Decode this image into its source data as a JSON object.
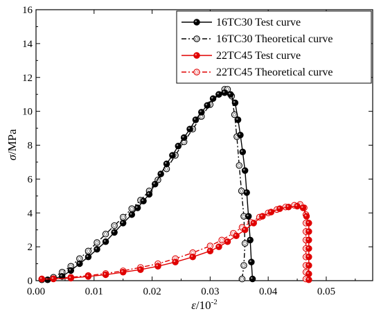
{
  "chart_data": {
    "type": "line",
    "ylabel_symbol": "σ",
    "ylabel_unit": "/MPa",
    "xlabel_symbol": "ε",
    "xlabel_unit": "/10",
    "xlabel_exp": "-2",
    "xlim": [
      0,
      0.058
    ],
    "ylim": [
      0,
      16
    ],
    "xticks": [
      0,
      0.01,
      0.02,
      0.03,
      0.04,
      0.05
    ],
    "xtick_labels": [
      "0.00",
      "0.01",
      "0.02",
      "0.03",
      "0.04",
      "0.05"
    ],
    "yticks": [
      0,
      2,
      4,
      6,
      8,
      10,
      12,
      14,
      16
    ],
    "ytick_labels": [
      "0",
      "2",
      "4",
      "6",
      "8",
      "10",
      "12",
      "14",
      "16"
    ],
    "grid": false,
    "legend_position": "top-right",
    "series": [
      {
        "name": "16TC30 Test curve",
        "color": "#000000",
        "line": "solid",
        "marker": "filled-circle",
        "x": [
          0.002,
          0.0045,
          0.006,
          0.0075,
          0.009,
          0.0105,
          0.012,
          0.0135,
          0.015,
          0.0165,
          0.0175,
          0.0185,
          0.0195,
          0.0205,
          0.0215,
          0.0225,
          0.0235,
          0.0245,
          0.0255,
          0.0265,
          0.0275,
          0.0285,
          0.0295,
          0.0305,
          0.0315,
          0.0325,
          0.0335,
          0.0343,
          0.0348,
          0.0352,
          0.0356,
          0.036,
          0.0363,
          0.0366,
          0.0369,
          0.0371,
          0.0373
        ],
        "y": [
          0.05,
          0.25,
          0.6,
          1.0,
          1.4,
          1.85,
          2.3,
          2.85,
          3.4,
          3.9,
          4.3,
          4.7,
          5.1,
          5.7,
          6.3,
          6.9,
          7.4,
          7.95,
          8.45,
          8.95,
          9.5,
          9.95,
          10.35,
          10.75,
          11.0,
          11.1,
          11.0,
          10.5,
          9.5,
          8.6,
          7.6,
          6.5,
          5.2,
          3.8,
          2.4,
          1.1,
          0.1
        ]
      },
      {
        "name": "16TC30 Theoretical curve",
        "color": "#000000",
        "line": "dash-dot",
        "marker": "hollow-circle",
        "x": [
          0.001,
          0.003,
          0.0045,
          0.006,
          0.0075,
          0.009,
          0.0105,
          0.012,
          0.0135,
          0.015,
          0.0165,
          0.018,
          0.0195,
          0.021,
          0.0225,
          0.024,
          0.0255,
          0.027,
          0.0285,
          0.03,
          0.0315,
          0.0325,
          0.033,
          0.0337,
          0.0342,
          0.0346,
          0.035,
          0.0354,
          0.0358,
          0.036,
          0.0358,
          0.0355
        ],
        "y": [
          0.05,
          0.2,
          0.5,
          0.85,
          1.3,
          1.75,
          2.25,
          2.75,
          3.25,
          3.75,
          4.25,
          4.75,
          5.3,
          5.95,
          6.6,
          7.4,
          8.2,
          8.95,
          9.7,
          10.4,
          11.0,
          11.3,
          11.3,
          10.9,
          9.8,
          8.5,
          6.8,
          5.3,
          3.8,
          2.2,
          0.9,
          0.1
        ]
      },
      {
        "name": "22TC45 Test curve",
        "color": "#e00000",
        "line": "solid",
        "marker": "filled-circle",
        "x": [
          0.001,
          0.003,
          0.006,
          0.009,
          0.012,
          0.015,
          0.018,
          0.021,
          0.024,
          0.027,
          0.03,
          0.0315,
          0.033,
          0.0345,
          0.036,
          0.0375,
          0.039,
          0.0405,
          0.042,
          0.0435,
          0.045,
          0.046,
          0.0466,
          0.047,
          0.047,
          0.047,
          0.047,
          0.047,
          0.047,
          0.047,
          0.047
        ],
        "y": [
          0.1,
          0.1,
          0.15,
          0.25,
          0.35,
          0.5,
          0.65,
          0.85,
          1.1,
          1.4,
          1.75,
          2.0,
          2.3,
          2.65,
          3.0,
          3.4,
          3.8,
          4.05,
          4.25,
          4.35,
          4.4,
          4.3,
          3.8,
          3.4,
          2.9,
          2.4,
          1.9,
          1.4,
          0.9,
          0.4,
          0.05
        ]
      },
      {
        "name": "22TC45 Theoretical curve",
        "color": "#e00000",
        "line": "dash-dot",
        "marker": "hollow-circle",
        "x": [
          0.001,
          0.003,
          0.006,
          0.009,
          0.012,
          0.015,
          0.018,
          0.021,
          0.024,
          0.027,
          0.03,
          0.032,
          0.034,
          0.0355,
          0.037,
          0.0385,
          0.04,
          0.0415,
          0.043,
          0.0445,
          0.0455,
          0.0462,
          0.0465,
          0.0465,
          0.0465,
          0.0465,
          0.0465,
          0.0465,
          0.0465,
          0.0465,
          0.0465
        ],
        "y": [
          0.1,
          0.12,
          0.2,
          0.3,
          0.42,
          0.58,
          0.78,
          1.0,
          1.3,
          1.65,
          2.05,
          2.4,
          2.8,
          3.15,
          3.45,
          3.75,
          4.0,
          4.2,
          4.35,
          4.45,
          4.5,
          4.3,
          3.9,
          3.4,
          2.9,
          2.4,
          1.9,
          1.4,
          0.9,
          0.5,
          0.1
        ]
      }
    ]
  }
}
